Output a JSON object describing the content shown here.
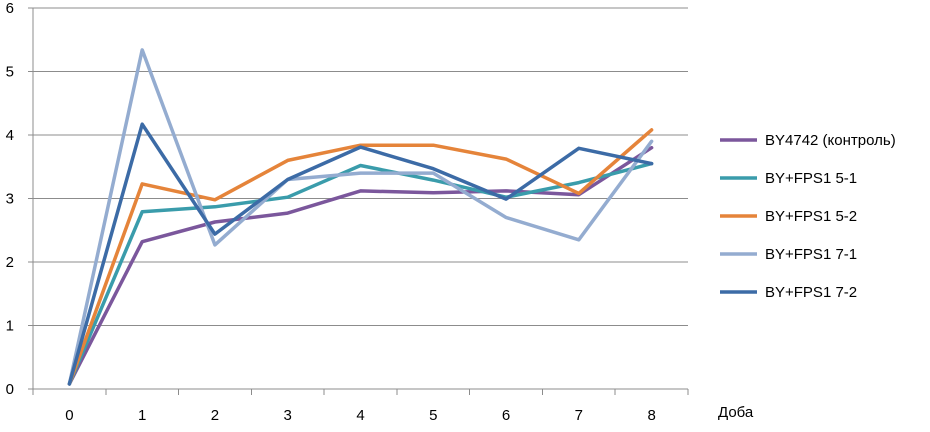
{
  "chart_data": {
    "type": "line",
    "x": [
      0,
      1,
      2,
      3,
      4,
      5,
      6,
      7,
      8
    ],
    "xlabel": "Доба",
    "ylabel": "",
    "ylim": [
      0,
      6
    ],
    "yticks": [
      0,
      1,
      2,
      3,
      4,
      5,
      6
    ],
    "grid": "horizontal",
    "legend_position": "right",
    "series": [
      {
        "name": "BY4742 (контроль)",
        "color": "#7b579c",
        "values": [
          0.08,
          2.32,
          2.63,
          2.77,
          3.12,
          3.09,
          3.12,
          3.06,
          3.8
        ]
      },
      {
        "name": "BY+FPS1 5-1",
        "color": "#3a9cab",
        "values": [
          0.08,
          2.79,
          2.87,
          3.02,
          3.52,
          3.29,
          3.02,
          3.25,
          3.55
        ]
      },
      {
        "name": "BY+FPS1 5-2",
        "color": "#e5843a",
        "values": [
          0.08,
          3.23,
          2.98,
          3.6,
          3.84,
          3.84,
          3.62,
          3.08,
          4.08
        ]
      },
      {
        "name": "BY+FPS1 7-1",
        "color": "#94acd0",
        "values": [
          0.08,
          5.34,
          2.27,
          3.3,
          3.4,
          3.4,
          2.7,
          2.35,
          3.9
        ]
      },
      {
        "name": "BY+FPS1 7-2",
        "color": "#3c6ba6",
        "values": [
          0.08,
          4.17,
          2.44,
          3.3,
          3.81,
          3.47,
          2.99,
          3.79,
          3.55
        ]
      }
    ]
  }
}
